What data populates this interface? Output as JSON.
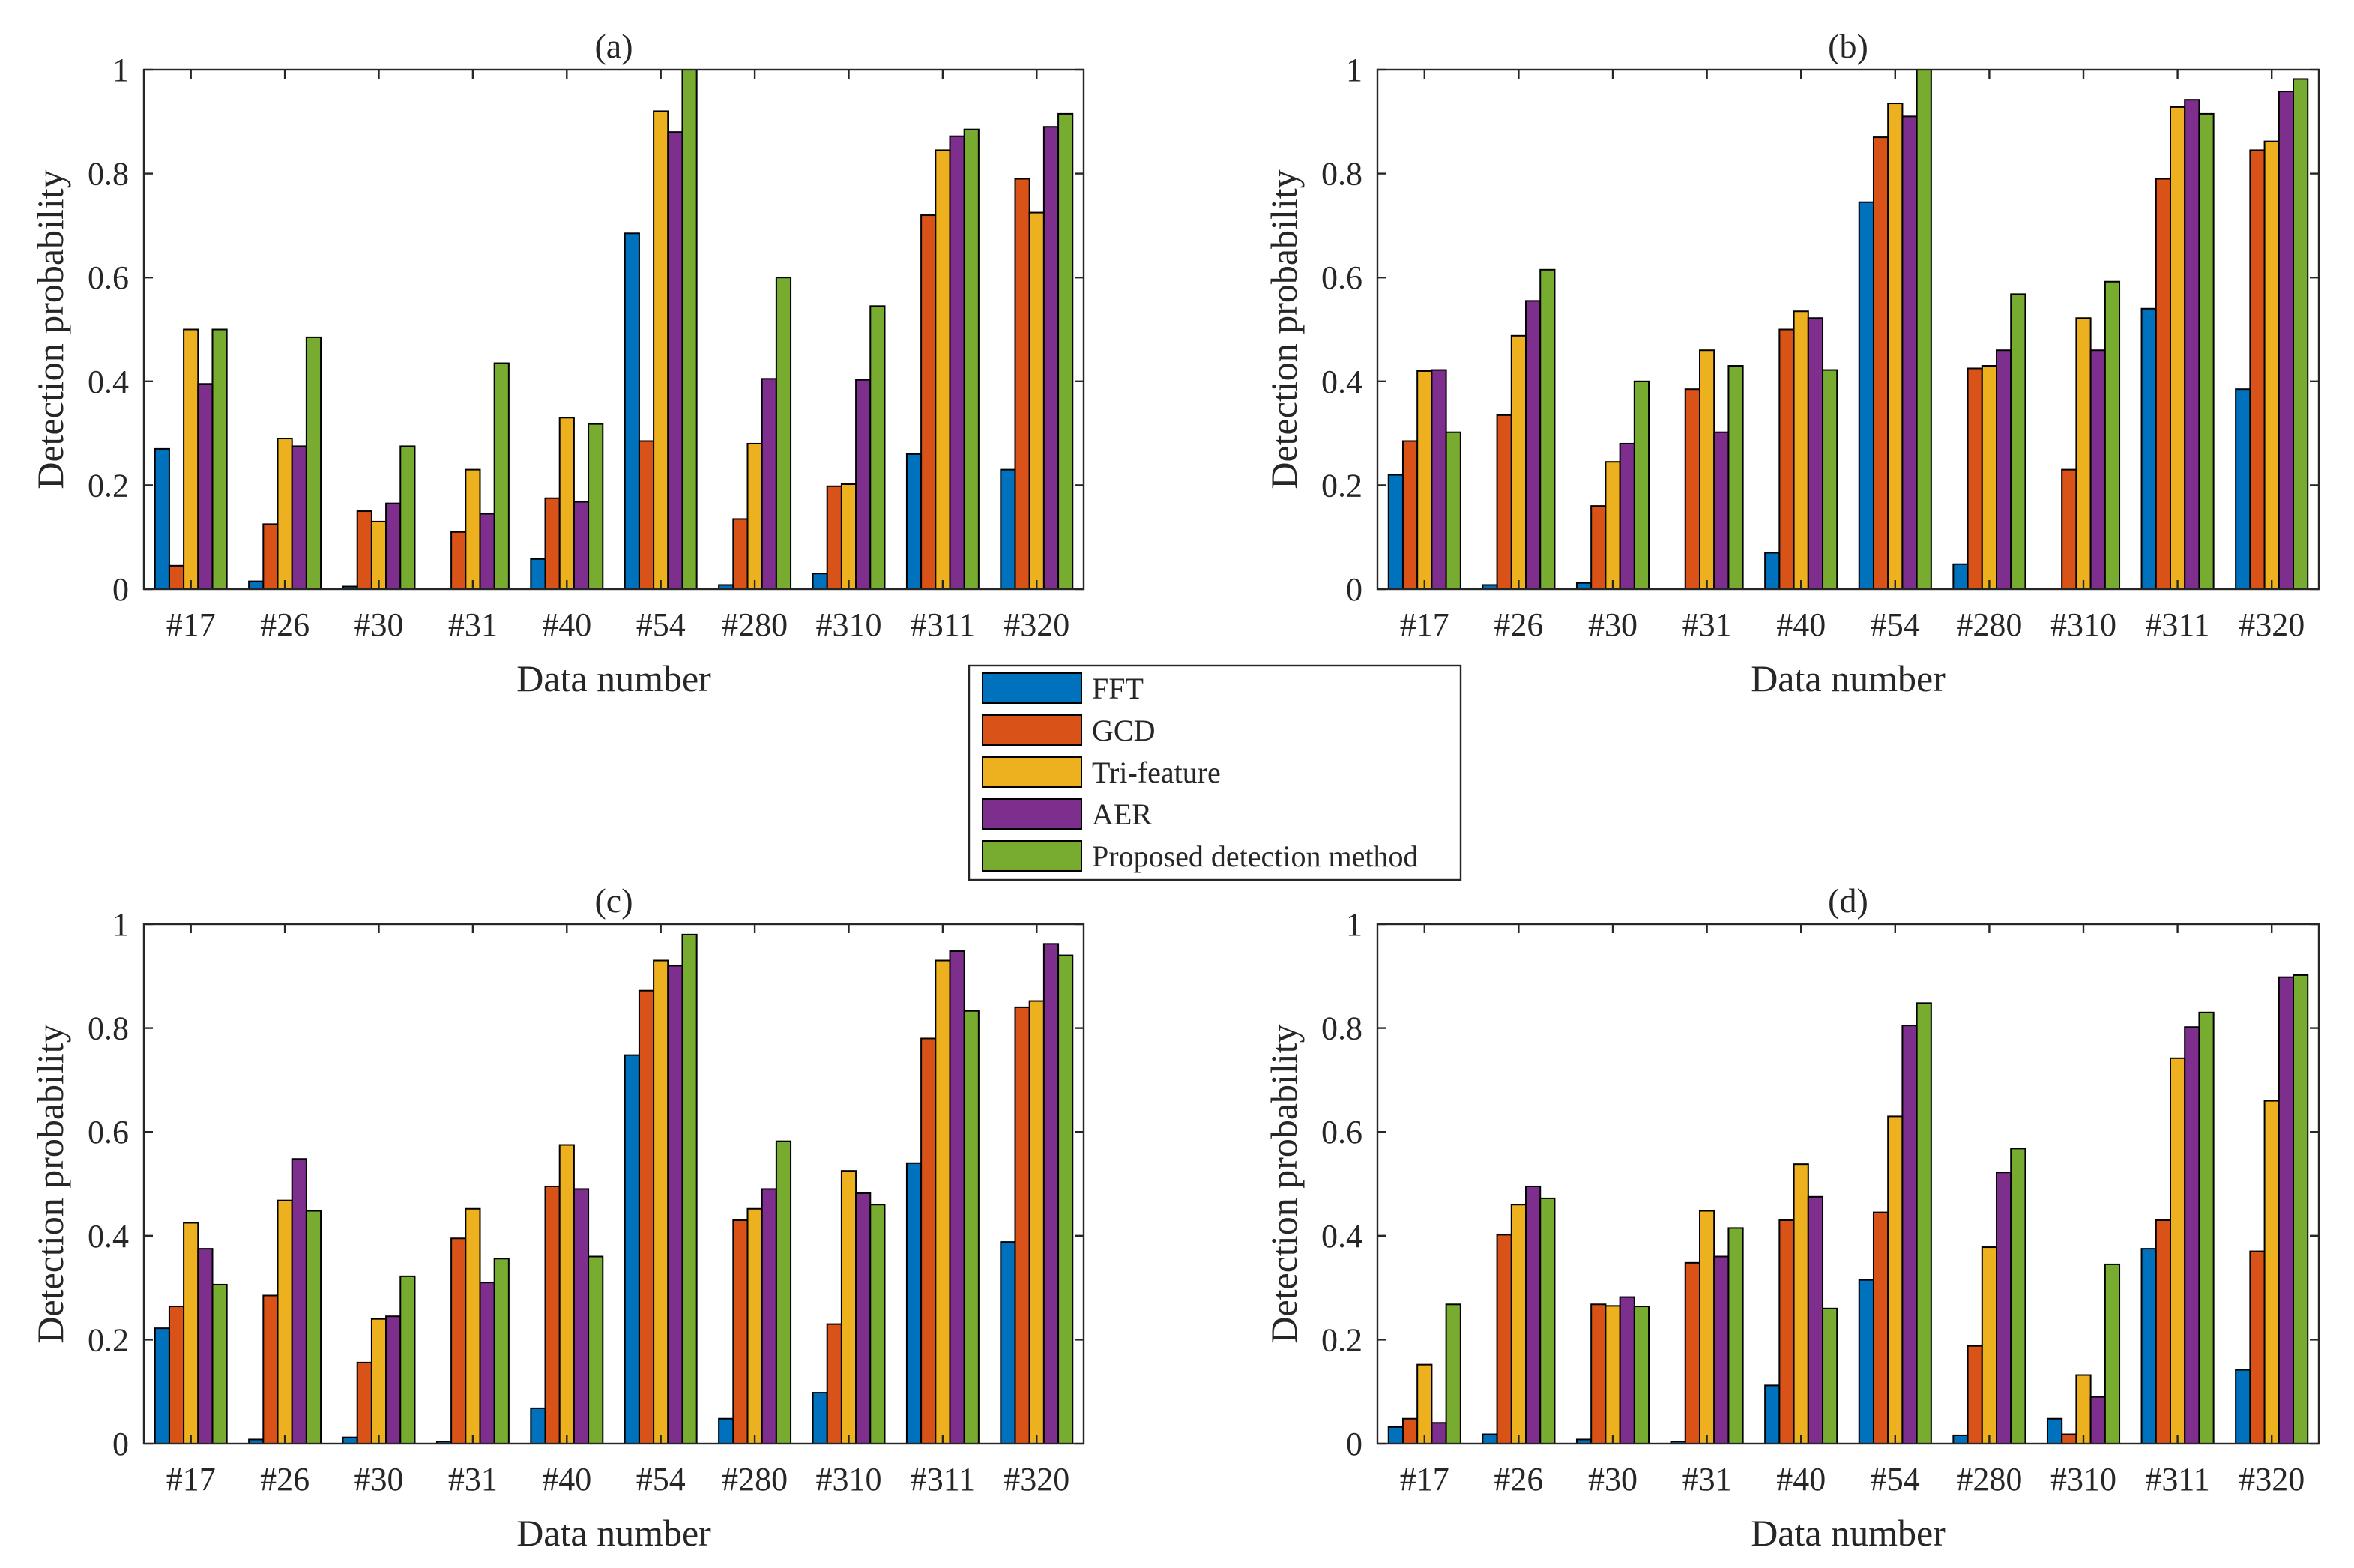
{
  "figure": {
    "legend": {
      "entries": [
        {
          "label": "FFT",
          "color": "#0072BD"
        },
        {
          "label": "GCD",
          "color": "#D95319"
        },
        {
          "label": "Tri-feature",
          "color": "#EDB120"
        },
        {
          "label": "AER",
          "color": "#7E2F8E"
        },
        {
          "label": "Proposed detection method",
          "color": "#77AC30"
        }
      ]
    }
  },
  "chart_data": [
    {
      "type": "bar",
      "title": "(a)",
      "xlabel": "Data number",
      "ylabel": "Detection probability",
      "ylim": [
        0,
        1
      ],
      "yticks": [
        "0",
        "0.2",
        "0.4",
        "0.6",
        "0.8",
        "1"
      ],
      "categories": [
        "#17",
        "#26",
        "#30",
        "#31",
        "#40",
        "#54",
        "#280",
        "#310",
        "#311",
        "#320"
      ],
      "series": [
        {
          "name": "FFT",
          "values": [
            0.27,
            0.015,
            0.005,
            0.0,
            0.058,
            0.685,
            0.008,
            0.03,
            0.26,
            0.23
          ]
        },
        {
          "name": "GCD",
          "values": [
            0.045,
            0.125,
            0.15,
            0.11,
            0.175,
            0.285,
            0.135,
            0.198,
            0.72,
            0.79
          ]
        },
        {
          "name": "Tri-feature",
          "values": [
            0.5,
            0.29,
            0.13,
            0.23,
            0.33,
            0.92,
            0.28,
            0.202,
            0.845,
            0.725
          ]
        },
        {
          "name": "AER",
          "values": [
            0.395,
            0.275,
            0.165,
            0.145,
            0.168,
            0.88,
            0.405,
            0.403,
            0.872,
            0.89
          ]
        },
        {
          "name": "Proposed detection method",
          "values": [
            0.5,
            0.485,
            0.275,
            0.435,
            0.318,
            1.0,
            0.6,
            0.545,
            0.885,
            0.915
          ]
        }
      ]
    },
    {
      "type": "bar",
      "title": "(b)",
      "xlabel": "Data number",
      "ylabel": "Detection probability",
      "ylim": [
        0,
        1
      ],
      "yticks": [
        "0",
        "0.2",
        "0.4",
        "0.6",
        "0.8",
        "1"
      ],
      "categories": [
        "#17",
        "#26",
        "#30",
        "#31",
        "#40",
        "#54",
        "#280",
        "#310",
        "#311",
        "#320"
      ],
      "series": [
        {
          "name": "FFT",
          "values": [
            0.22,
            0.008,
            0.012,
            0.0,
            0.07,
            0.745,
            0.048,
            0.0,
            0.54,
            0.385
          ]
        },
        {
          "name": "GCD",
          "values": [
            0.285,
            0.335,
            0.16,
            0.385,
            0.5,
            0.87,
            0.425,
            0.23,
            0.79,
            0.845
          ]
        },
        {
          "name": "Tri-feature",
          "values": [
            0.42,
            0.488,
            0.245,
            0.46,
            0.535,
            0.935,
            0.43,
            0.522,
            0.928,
            0.862
          ]
        },
        {
          "name": "AER",
          "values": [
            0.422,
            0.555,
            0.28,
            0.302,
            0.522,
            0.91,
            0.46,
            0.46,
            0.942,
            0.958
          ]
        },
        {
          "name": "Proposed detection method",
          "values": [
            0.302,
            0.615,
            0.4,
            0.43,
            0.422,
            1.0,
            0.568,
            0.592,
            0.915,
            0.982
          ]
        }
      ]
    },
    {
      "type": "bar",
      "title": "(c)",
      "xlabel": "Data number",
      "ylabel": "Detection probability",
      "ylim": [
        0,
        1
      ],
      "yticks": [
        "0",
        "0.2",
        "0.4",
        "0.6",
        "0.8",
        "1"
      ],
      "categories": [
        "#17",
        "#26",
        "#30",
        "#31",
        "#40",
        "#54",
        "#280",
        "#310",
        "#311",
        "#320"
      ],
      "series": [
        {
          "name": "FFT",
          "values": [
            0.222,
            0.008,
            0.012,
            0.004,
            0.068,
            0.748,
            0.048,
            0.098,
            0.54,
            0.388
          ]
        },
        {
          "name": "GCD",
          "values": [
            0.264,
            0.285,
            0.156,
            0.395,
            0.495,
            0.872,
            0.43,
            0.23,
            0.78,
            0.84
          ]
        },
        {
          "name": "Tri-feature",
          "values": [
            0.425,
            0.468,
            0.24,
            0.452,
            0.575,
            0.93,
            0.452,
            0.525,
            0.93,
            0.852
          ]
        },
        {
          "name": "AER",
          "values": [
            0.375,
            0.548,
            0.245,
            0.31,
            0.49,
            0.92,
            0.49,
            0.482,
            0.948,
            0.962
          ]
        },
        {
          "name": "Proposed detection method",
          "values": [
            0.306,
            0.448,
            0.322,
            0.356,
            0.36,
            0.98,
            0.582,
            0.46,
            0.833,
            0.94
          ]
        }
      ]
    },
    {
      "type": "bar",
      "title": "(d)",
      "xlabel": "Data number",
      "ylabel": "Detection probability",
      "ylim": [
        0,
        1
      ],
      "yticks": [
        "0",
        "0.2",
        "0.4",
        "0.6",
        "0.8",
        "1"
      ],
      "categories": [
        "#17",
        "#26",
        "#30",
        "#31",
        "#40",
        "#54",
        "#280",
        "#310",
        "#311",
        "#320"
      ],
      "series": [
        {
          "name": "FFT",
          "values": [
            0.032,
            0.018,
            0.008,
            0.004,
            0.112,
            0.315,
            0.016,
            0.048,
            0.375,
            0.142
          ]
        },
        {
          "name": "GCD",
          "values": [
            0.048,
            0.402,
            0.268,
            0.348,
            0.43,
            0.445,
            0.188,
            0.018,
            0.43,
            0.37
          ]
        },
        {
          "name": "Tri-feature",
          "values": [
            0.152,
            0.46,
            0.265,
            0.448,
            0.538,
            0.63,
            0.378,
            0.132,
            0.742,
            0.66
          ]
        },
        {
          "name": "AER",
          "values": [
            0.04,
            0.495,
            0.282,
            0.36,
            0.475,
            0.805,
            0.522,
            0.09,
            0.802,
            0.898
          ]
        },
        {
          "name": "Proposed detection method",
          "values": [
            0.268,
            0.472,
            0.264,
            0.415,
            0.26,
            0.848,
            0.568,
            0.345,
            0.83,
            0.902
          ]
        }
      ]
    }
  ]
}
